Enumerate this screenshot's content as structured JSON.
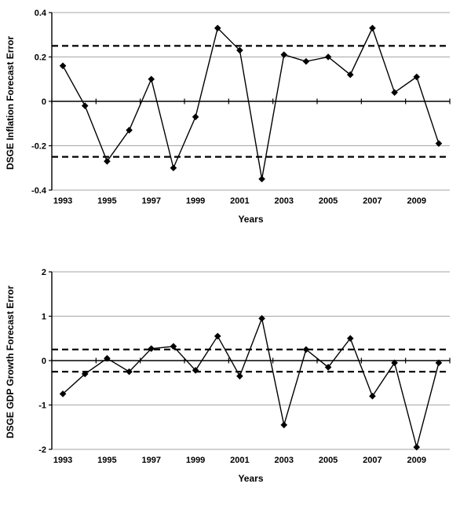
{
  "page": {
    "background": "#ffffff"
  },
  "chart_data": [
    {
      "type": "line",
      "title": "",
      "ylabel": "DSGE Inflation Forecast Error",
      "xlabel": "Years",
      "x": [
        1993,
        1994,
        1995,
        1996,
        1997,
        1998,
        1999,
        2000,
        2001,
        2002,
        2003,
        2004,
        2005,
        2006,
        2007,
        2008,
        2009,
        2010
      ],
      "series": [
        {
          "name": "DSGE inflation forecast error",
          "values": [
            0.16,
            -0.02,
            -0.27,
            -0.13,
            0.1,
            -0.3,
            -0.07,
            0.33,
            0.23,
            -0.35,
            0.21,
            0.18,
            0.2,
            0.12,
            0.33,
            0.04,
            0.11,
            -0.19
          ]
        }
      ],
      "ylim": [
        -0.4,
        0.4
      ],
      "yticks": [
        0.4,
        0.2,
        0,
        -0.2,
        -0.4
      ],
      "ytick_labels": [
        "0.4",
        "0.2",
        "0",
        "-0.2",
        "-0.4"
      ],
      "xtick_labels": [
        1993,
        1995,
        1997,
        1999,
        2001,
        2003,
        2005,
        2007,
        2009
      ],
      "ref_lines": [
        0.25,
        -0.25
      ],
      "grid": true,
      "legend": "none",
      "marker": "diamond",
      "colors": {
        "line": "#000000",
        "marker": "#000000",
        "grid": "#a6a6a6",
        "ref_line": "#000000",
        "axis": "#000000"
      }
    },
    {
      "type": "line",
      "title": "",
      "ylabel": "DSGE GDP Growth Forecast Error",
      "xlabel": "Years",
      "x": [
        1993,
        1994,
        1995,
        1996,
        1997,
        1998,
        1999,
        2000,
        2001,
        2002,
        2003,
        2004,
        2005,
        2006,
        2007,
        2008,
        2009,
        2010
      ],
      "series": [
        {
          "name": "DSGE GDP growth forecast error",
          "values": [
            -0.75,
            -0.3,
            0.05,
            -0.25,
            0.27,
            0.32,
            -0.22,
            0.55,
            -0.35,
            0.95,
            -1.45,
            0.25,
            -0.15,
            0.5,
            -0.8,
            -0.05,
            -1.95,
            -0.05
          ]
        }
      ],
      "ylim": [
        -2,
        2
      ],
      "yticks": [
        2,
        1,
        0,
        -1,
        -2
      ],
      "ytick_labels": [
        "2",
        "1",
        "0",
        "-1",
        "-2"
      ],
      "xtick_labels": [
        1993,
        1995,
        1997,
        1999,
        2001,
        2003,
        2005,
        2007,
        2009
      ],
      "ref_lines": [
        0.25,
        -0.25
      ],
      "grid": true,
      "legend": "none",
      "marker": "diamond",
      "colors": {
        "line": "#000000",
        "marker": "#000000",
        "grid": "#a6a6a6",
        "ref_line": "#000000",
        "axis": "#000000"
      }
    }
  ]
}
